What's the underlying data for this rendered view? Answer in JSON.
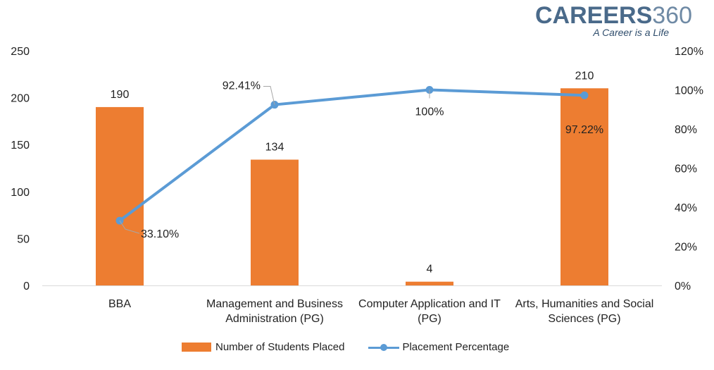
{
  "brand": {
    "name_a": "CAREERS",
    "name_b": "360",
    "tagline": "A Career is a Life"
  },
  "colors": {
    "bar": "#ED7D31",
    "line": "#5B9BD5",
    "axis_text": "#222222",
    "axis_line": "#D9D9D9"
  },
  "chart_data": {
    "type": "bar",
    "categories": [
      [
        "BBA"
      ],
      [
        "Management and Business",
        "Administration (PG)"
      ],
      [
        "Computer Application and IT",
        "(PG)"
      ],
      [
        "Arts, Humanities and Social",
        "Sciences (PG)"
      ]
    ],
    "series": [
      {
        "name": "Number of Students Placed",
        "type": "bar",
        "axis": "left",
        "values": [
          190,
          134,
          4,
          210
        ],
        "labels": [
          "190",
          "134",
          "4",
          "210"
        ]
      },
      {
        "name": "Placement Percentage",
        "type": "line",
        "axis": "right",
        "values": [
          33.1,
          92.41,
          100,
          97.22
        ],
        "labels": [
          "33.10%",
          "92.41%",
          "100%",
          "97.22%"
        ]
      }
    ],
    "y_left": {
      "min": 0,
      "max": 250,
      "ticks": [
        "0",
        "50",
        "100",
        "150",
        "200",
        "250"
      ]
    },
    "y_right": {
      "min": 0,
      "max": 120,
      "ticks": [
        "0%",
        "20%",
        "40%",
        "60%",
        "80%",
        "100%",
        "120%"
      ]
    },
    "legend_position": "bottom",
    "grid": false
  }
}
